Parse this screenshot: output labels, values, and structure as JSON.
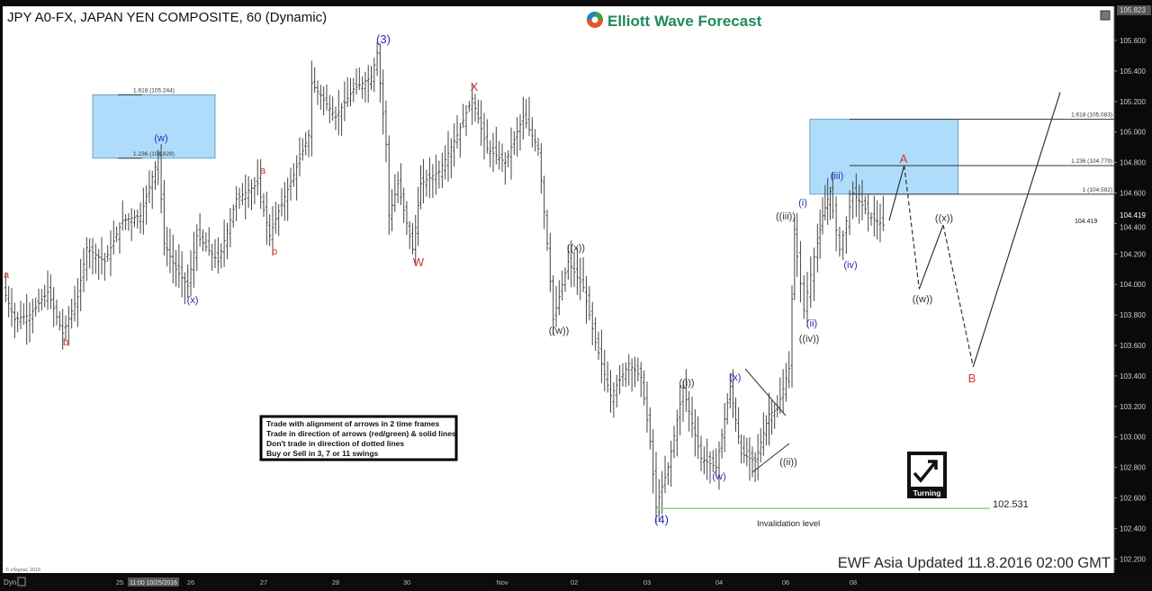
{
  "header": {
    "title": "JPY A0-FX, JAPAN YEN COMPOSITE, 60 (Dynamic)",
    "logo_text": "Elliott Wave Forecast"
  },
  "instructions": [
    "Trade with alignment of arrows in 2 time frames",
    "Trade in direction of arrows (red/green) & solid lines",
    "Don't trade in direction of dotted lines",
    "Buy or Sell in 3, 7 or 11 swings"
  ],
  "turning_badge": {
    "label": "Turning",
    "icon": "check-arrow-icon"
  },
  "invalidation": {
    "label": "Invalidation level",
    "value": "102.531",
    "color": "#7fdc7f"
  },
  "footer": {
    "updated": "EWF Asia Updated 11.8.2016 02:00 GMT",
    "copyright": "© eSignal, 2016"
  },
  "x_axis": {
    "mode_label": "Dyn",
    "cursor_label": "11:00 10/25/2016",
    "ticks": [
      "25",
      "26",
      "27",
      "28",
      "30",
      "Nov",
      "02",
      "03",
      "04",
      "06",
      "08"
    ]
  },
  "y_axis": {
    "top_label": "105.823",
    "current_price": "104.419",
    "ticks": [
      "105.600",
      "105.400",
      "105.200",
      "105.000",
      "104.800",
      "104.600",
      "104.400",
      "104.200",
      "104.000",
      "103.800",
      "103.600",
      "103.400",
      "103.200",
      "103.000",
      "102.800",
      "102.600",
      "102.400",
      "102.200"
    ]
  },
  "chart_data": {
    "type": "ohlc-bar",
    "title": "JPY A0-FX, JAPAN YEN COMPOSITE, 60 (Dynamic)",
    "ylim": [
      102.1,
      105.823
    ],
    "grid": false,
    "price_path": [
      [
        "Oct 23 10:00",
        103.98
      ],
      [
        "Oct 23 14:00",
        103.77
      ],
      [
        "Oct 23 19:00",
        103.8
      ],
      [
        "Oct 24 01:00",
        103.95
      ],
      [
        "Oct 24 06:00",
        103.68
      ],
      [
        "Oct 24 11:00",
        103.92
      ],
      [
        "Oct 24 14:00",
        104.24
      ],
      [
        "Oct 24 20:00",
        104.15
      ],
      [
        "Oct 25 02:00",
        104.42
      ],
      [
        "Oct 25 08:00",
        104.45
      ],
      [
        "Oct 25 13:00",
        104.77
      ],
      [
        "Oct 25 14:00",
        104.85
      ],
      [
        "Oct 25 16:00",
        104.27
      ],
      [
        "Oct 25 20:00",
        104.1
      ],
      [
        "Oct 26 00:00",
        103.99
      ],
      [
        "Oct 26 03:00",
        104.32
      ],
      [
        "Oct 26 10:00",
        104.15
      ],
      [
        "Oct 26 16:00",
        104.56
      ],
      [
        "Oct 26 23:00",
        104.66
      ],
      [
        "Oct 27 03:00",
        104.32
      ],
      [
        "Oct 27 06:00",
        104.48
      ],
      [
        "Oct 27 11:00",
        104.72
      ],
      [
        "Oct 27 16:00",
        104.98
      ],
      [
        "Oct 27 17:00",
        105.32
      ],
      [
        "Oct 28 01:00",
        105.1
      ],
      [
        "Oct 28 07:00",
        105.28
      ],
      [
        "Oct 28 13:00",
        105.36
      ],
      [
        "Oct 28 15:00",
        105.52
      ],
      [
        "Oct 28 18:00",
        104.92
      ],
      [
        "Oct 28 19:00",
        104.45
      ],
      [
        "Oct 28 22:00",
        104.66
      ],
      [
        "Oct 30 09:00",
        104.23
      ],
      [
        "Oct 30 17:00",
        104.66
      ],
      [
        "Oct 31 04:00",
        104.74
      ],
      [
        "Oct 31 10:00",
        104.98
      ],
      [
        "Oct 31 15:00",
        105.22
      ],
      [
        "Oct 31 20:00",
        104.89
      ],
      [
        "Nov 01 02:00",
        104.8
      ],
      [
        "Nov 01 08:00",
        105.1
      ],
      [
        "Nov 01 13:00",
        104.89
      ],
      [
        "Nov 01 16:00",
        104.27
      ],
      [
        "Nov 01 18:00",
        103.77
      ],
      [
        "Nov 01 23:00",
        104.15
      ],
      [
        "Nov 02 04:00",
        103.98
      ],
      [
        "Nov 02 08:00",
        103.62
      ],
      [
        "Nov 02 13:00",
        103.27
      ],
      [
        "Nov 02 19:00",
        103.48
      ],
      [
        "Nov 02 23:00",
        103.39
      ],
      [
        "Nov 03 02:00",
        102.97
      ],
      [
        "Nov 03 04:00",
        102.54
      ],
      [
        "Nov 03 08:00",
        102.8
      ],
      [
        "Nov 03 13:00",
        103.32
      ],
      [
        "Nov 03 19:00",
        102.86
      ],
      [
        "Nov 04 00:00",
        102.8
      ],
      [
        "Nov 04 05:00",
        103.33
      ],
      [
        "Nov 04 09:00",
        102.89
      ],
      [
        "Nov 04 14:00",
        102.84
      ],
      [
        "Nov 04 19:00",
        103.15
      ],
      [
        "Nov 04 22:00",
        103.18
      ],
      [
        "Nov 07 00:00",
        103.45
      ],
      [
        "Nov 07 02:00",
        104.36
      ],
      [
        "Nov 07 06:00",
        103.83
      ],
      [
        "Nov 07 10:00",
        104.18
      ],
      [
        "Nov 07 13:00",
        104.45
      ],
      [
        "Nov 07 16:00",
        104.61
      ],
      [
        "Nov 07 20:00",
        104.23
      ],
      [
        "Nov 08 01:00",
        104.6
      ],
      [
        "Nov 08 07:00",
        104.44
      ],
      [
        "Nov 08 11:00",
        104.39
      ]
    ],
    "projection": [
      {
        "from": [
          "Nov 08 12:00",
          104.42
        ],
        "to": [
          "Nov 08 17:00",
          104.78
        ],
        "style": "solid"
      },
      {
        "from": [
          "Nov 08 17:00",
          104.78
        ],
        "to": [
          "Nov 08 22:00",
          103.97
        ],
        "style": "dashed"
      },
      {
        "from": [
          "Nov 08 22:00",
          103.97
        ],
        "to": [
          "Nov 09 06:00",
          104.39
        ],
        "style": "solid"
      },
      {
        "from": [
          "Nov 09 06:00",
          104.39
        ],
        "to": [
          "Nov 09 16:00",
          103.46
        ],
        "style": "dashed"
      },
      {
        "from": [
          "Nov 09 16:00",
          103.46
        ],
        "to": [
          "Nov 10 21:00",
          105.26
        ],
        "style": "solid"
      }
    ],
    "fib_zones": [
      {
        "from": "Oct 24 15:00",
        "to": "Oct 26 08:00",
        "levels": [
          {
            "label": "1.618 (105.244)",
            "price": 105.244
          },
          {
            "label": "1.236 (104.828)",
            "price": 104.828
          }
        ],
        "color": "#aedcfa"
      },
      {
        "from": "Nov 07 07:00",
        "to": "Nov 09 11:00",
        "levels": [
          {
            "label": "1.618 (105.083)",
            "price": 105.083
          },
          {
            "label": "1.236 (104.779)",
            "price": 104.779
          },
          {
            "label": "1 (104.592)",
            "price": 104.592
          }
        ],
        "color": "#aedcfa"
      }
    ],
    "invalidation_price": 102.531,
    "wave_labels": [
      {
        "text": "(3)",
        "color": "#2b2bb8"
      },
      {
        "text": "X",
        "color": "#d0342c"
      },
      {
        "text": "W",
        "color": "#d0342c"
      },
      {
        "text": "(w)",
        "color": "#2b2bb8"
      },
      {
        "text": "(x)",
        "color": "#2b2bb8"
      },
      {
        "text": "a",
        "color": "#d0342c"
      },
      {
        "text": "b",
        "color": "#d0342c"
      },
      {
        "text": "a",
        "color": "#d0342c"
      },
      {
        "text": "b",
        "color": "#d0342c"
      },
      {
        "text": "((x))",
        "color": "#333333"
      },
      {
        "text": "((w))",
        "color": "#333333"
      },
      {
        "text": "((i))",
        "color": "#333333"
      },
      {
        "text": "(w)",
        "color": "#2b2bb8"
      },
      {
        "text": "(x)",
        "color": "#2b2bb8"
      },
      {
        "text": "((ii))",
        "color": "#333333"
      },
      {
        "text": "((iii))",
        "color": "#333333"
      },
      {
        "text": "(i)",
        "color": "#2b2bb8"
      },
      {
        "text": "(ii)",
        "color": "#2b2bb8"
      },
      {
        "text": "((iv))",
        "color": "#333333"
      },
      {
        "text": "(iii)",
        "color": "#2b2bb8"
      },
      {
        "text": "(iv)",
        "color": "#2b2bb8"
      },
      {
        "text": "A",
        "color": "#d0342c"
      },
      {
        "text": "((w))",
        "color": "#333333"
      },
      {
        "text": "((x))",
        "color": "#333333"
      },
      {
        "text": "B",
        "color": "#d0342c"
      },
      {
        "text": "(4)",
        "color": "#2b2bb8"
      }
    ]
  }
}
